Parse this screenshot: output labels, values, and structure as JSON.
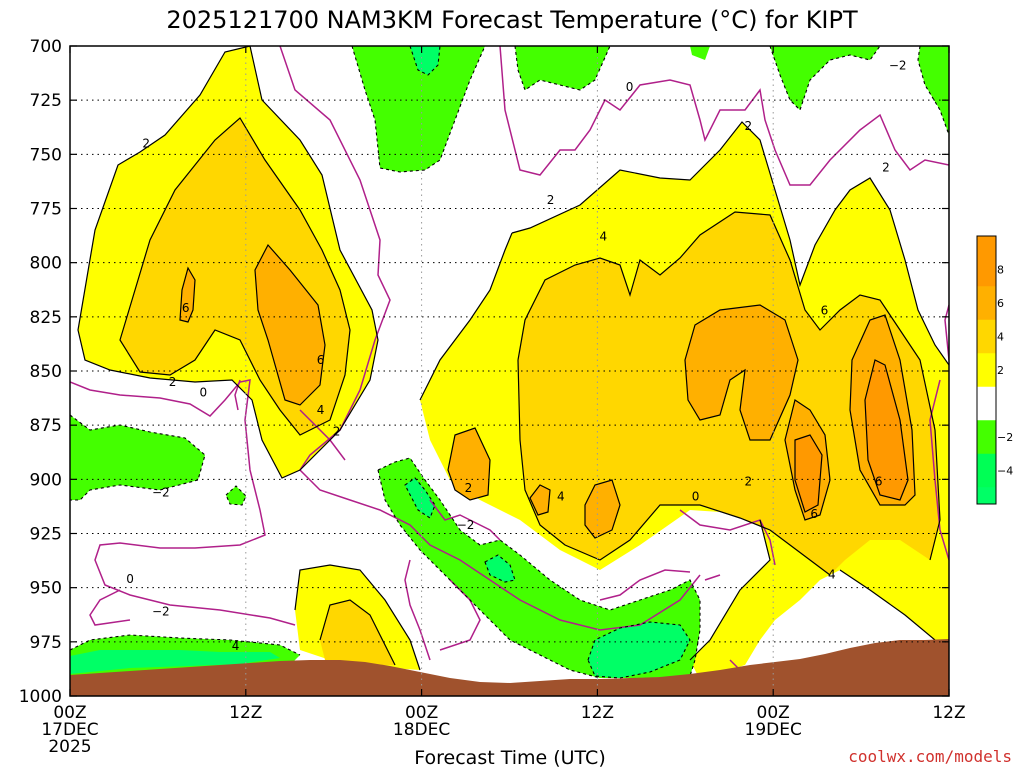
{
  "chart_data": {
    "type": "heatmap",
    "title": "2025121700 NAM3KM Forecast Temperature (°C) for KIPT",
    "xlabel": "Forecast Time (UTC)",
    "ylabel": "",
    "ylim": [
      1000,
      700
    ],
    "y_ticks": [
      "700",
      "725",
      "750",
      "775",
      "800",
      "825",
      "850",
      "875",
      "900",
      "925",
      "950",
      "975",
      "1000"
    ],
    "x_ticks": [
      {
        "line1": "00Z",
        "line2": "17DEC",
        "line3": "2025"
      },
      {
        "line1": "12Z",
        "line2": "",
        "line3": ""
      },
      {
        "line1": "00Z",
        "line2": "18DEC",
        "line3": ""
      },
      {
        "line1": "12Z",
        "line2": "",
        "line3": ""
      },
      {
        "line1": "00Z",
        "line2": "19DEC",
        "line3": ""
      },
      {
        "line1": "12Z",
        "line2": "",
        "line3": ""
      }
    ],
    "x_range_hours": [
      0,
      60
    ],
    "colorbar": {
      "levels": [
        {
          "label": "8",
          "color": "#ff9900"
        },
        {
          "label": "6",
          "color": "#ffb000"
        },
        {
          "label": "4",
          "color": "#ffd700"
        },
        {
          "label": "2",
          "color": "#ffff00"
        },
        {
          "label": "",
          "color": "#ffffff"
        },
        {
          "label": "−2",
          "color": "#44ff00"
        },
        {
          "label": "−4",
          "color": "#00ff55"
        }
      ],
      "top_color": "#ff9900",
      "bottom_color": "#00ff66"
    },
    "contour_labels": [
      {
        "text": "2",
        "hour": 5.2,
        "p": 745
      },
      {
        "text": "6",
        "hour": 7.9,
        "p": 821
      },
      {
        "text": "6",
        "hour": 17.1,
        "p": 845
      },
      {
        "text": "4",
        "hour": 17.1,
        "p": 868
      },
      {
        "text": "2",
        "hour": 18.2,
        "p": 878
      },
      {
        "text": "2",
        "hour": 7.0,
        "p": 855
      },
      {
        "text": "0",
        "hour": 9.1,
        "p": 860
      },
      {
        "text": "−2",
        "hour": 6.2,
        "p": 906
      },
      {
        "text": "0",
        "hour": 4.1,
        "p": 946
      },
      {
        "text": "−2",
        "hour": 6.2,
        "p": 961
      },
      {
        "text": "4",
        "hour": 11.3,
        "p": 977
      },
      {
        "text": "2",
        "hour": 27.2,
        "p": 904
      },
      {
        "text": "−2",
        "hour": 27.0,
        "p": 921
      },
      {
        "text": "4",
        "hour": 33.5,
        "p": 908
      },
      {
        "text": "0",
        "hour": 38.2,
        "p": 719
      },
      {
        "text": "2",
        "hour": 32.8,
        "p": 771
      },
      {
        "text": "4",
        "hour": 36.4,
        "p": 788
      },
      {
        "text": "0",
        "hour": 42.7,
        "p": 908
      },
      {
        "text": "2",
        "hour": 46.3,
        "p": 737
      },
      {
        "text": "2",
        "hour": 46.3,
        "p": 901
      },
      {
        "text": "6",
        "hour": 51.5,
        "p": 822
      },
      {
        "text": "6",
        "hour": 50.8,
        "p": 916
      },
      {
        "text": "6",
        "hour": 55.2,
        "p": 901
      },
      {
        "text": "4",
        "hour": 52.0,
        "p": 944
      },
      {
        "text": "2",
        "hour": 55.7,
        "p": 756
      },
      {
        "text": "−2",
        "hour": 56.5,
        "p": 709
      }
    ]
  },
  "watermark": "coolwx.com/models"
}
